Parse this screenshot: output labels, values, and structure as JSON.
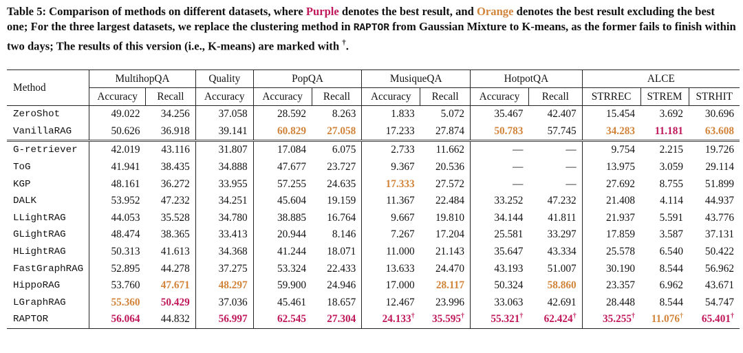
{
  "caption": {
    "label": "Table 5:",
    "part1": " Comparison of methods on different datasets, where ",
    "purple_word": "Purple",
    "part2": " denotes the best result, and ",
    "orange_word": "Orange",
    "part3": " denotes the best result excluding the best one; For the three largest datasets, we replace the clustering method in ",
    "raptor_word": "RAPTOR",
    "part4": " from Gaussian Mixture to K-means, as the former fails to finish within two days; The results of this version (i.e., K-means) are marked with ",
    "dagger": "†",
    "part5": "."
  },
  "colors": {
    "best": "#c0185a",
    "second": "#d2843a"
  },
  "header": {
    "method": "Method",
    "groups": [
      {
        "name": "MultihopQA",
        "span": 2
      },
      {
        "name": "Quality",
        "span": 1
      },
      {
        "name": "PopQA",
        "span": 2
      },
      {
        "name": "MusiqueQA",
        "span": 2
      },
      {
        "name": "HotpotQA",
        "span": 2
      },
      {
        "name": "ALCE",
        "span": 3
      }
    ],
    "subheaders": [
      "Accuracy",
      "Recall",
      "Accuracy",
      "Accuracy",
      "Recall",
      "Accuracy",
      "Recall",
      "Accuracy",
      "Recall",
      "STRREC",
      "STREM",
      "STRHIT"
    ]
  },
  "section1": [
    {
      "method": "ZeroShot",
      "cells": [
        {
          "v": "49.022"
        },
        {
          "v": "34.256"
        },
        {
          "v": "37.058"
        },
        {
          "v": "28.592"
        },
        {
          "v": "8.263"
        },
        {
          "v": "1.833"
        },
        {
          "v": "5.072"
        },
        {
          "v": "35.467"
        },
        {
          "v": "42.407"
        },
        {
          "v": "15.454"
        },
        {
          "v": "3.692"
        },
        {
          "v": "30.696"
        }
      ]
    },
    {
      "method": "VanillaRAG",
      "cells": [
        {
          "v": "50.626"
        },
        {
          "v": "36.918"
        },
        {
          "v": "39.141"
        },
        {
          "v": "60.829",
          "c": "second"
        },
        {
          "v": "27.058",
          "c": "second"
        },
        {
          "v": "17.233"
        },
        {
          "v": "27.874"
        },
        {
          "v": "50.783",
          "c": "second"
        },
        {
          "v": "57.745"
        },
        {
          "v": "34.283",
          "c": "second"
        },
        {
          "v": "11.181",
          "c": "best"
        },
        {
          "v": "63.608",
          "c": "second"
        }
      ]
    }
  ],
  "section2": [
    {
      "method": "G-retriever",
      "cells": [
        {
          "v": "42.019"
        },
        {
          "v": "43.116"
        },
        {
          "v": "31.807"
        },
        {
          "v": "17.084"
        },
        {
          "v": "6.075"
        },
        {
          "v": "2.733"
        },
        {
          "v": "11.662"
        },
        {
          "v": "—"
        },
        {
          "v": "—"
        },
        {
          "v": "9.754"
        },
        {
          "v": "2.215"
        },
        {
          "v": "19.726"
        }
      ]
    },
    {
      "method": "ToG",
      "cells": [
        {
          "v": "41.941"
        },
        {
          "v": "38.435"
        },
        {
          "v": "34.888"
        },
        {
          "v": "47.677"
        },
        {
          "v": "23.727"
        },
        {
          "v": "9.367"
        },
        {
          "v": "20.536"
        },
        {
          "v": "—"
        },
        {
          "v": "—"
        },
        {
          "v": "13.975"
        },
        {
          "v": "3.059"
        },
        {
          "v": "29.114"
        }
      ]
    },
    {
      "method": "KGP",
      "cells": [
        {
          "v": "48.161"
        },
        {
          "v": "36.272"
        },
        {
          "v": "33.955"
        },
        {
          "v": "57.255"
        },
        {
          "v": "24.635"
        },
        {
          "v": "17.333",
          "c": "second"
        },
        {
          "v": "27.572"
        },
        {
          "v": "—"
        },
        {
          "v": "—"
        },
        {
          "v": "27.692"
        },
        {
          "v": "8.755"
        },
        {
          "v": "51.899"
        }
      ]
    },
    {
      "method": "DALK",
      "cells": [
        {
          "v": "53.952"
        },
        {
          "v": "47.232"
        },
        {
          "v": "34.251"
        },
        {
          "v": "45.604"
        },
        {
          "v": "19.159"
        },
        {
          "v": "11.367"
        },
        {
          "v": "22.484"
        },
        {
          "v": "33.252"
        },
        {
          "v": "47.232"
        },
        {
          "v": "21.408"
        },
        {
          "v": "4.114"
        },
        {
          "v": "44.937"
        }
      ]
    },
    {
      "method": "LLightRAG",
      "cells": [
        {
          "v": "44.053"
        },
        {
          "v": "35.528"
        },
        {
          "v": "34.780"
        },
        {
          "v": "38.885"
        },
        {
          "v": "16.764"
        },
        {
          "v": "9.667"
        },
        {
          "v": "19.810"
        },
        {
          "v": "34.144"
        },
        {
          "v": "41.811"
        },
        {
          "v": "21.937"
        },
        {
          "v": "5.591"
        },
        {
          "v": "43.776"
        }
      ]
    },
    {
      "method": "GLightRAG",
      "cells": [
        {
          "v": "48.474"
        },
        {
          "v": "38.365"
        },
        {
          "v": "33.413"
        },
        {
          "v": "20.944"
        },
        {
          "v": "8.146"
        },
        {
          "v": "7.267"
        },
        {
          "v": "17.204"
        },
        {
          "v": "25.581"
        },
        {
          "v": "33.297"
        },
        {
          "v": "17.859"
        },
        {
          "v": "3.587"
        },
        {
          "v": "37.131"
        }
      ]
    },
    {
      "method": "HLightRAG",
      "cells": [
        {
          "v": "50.313"
        },
        {
          "v": "41.613"
        },
        {
          "v": "34.368"
        },
        {
          "v": "41.244"
        },
        {
          "v": "18.071"
        },
        {
          "v": "11.000"
        },
        {
          "v": "21.143"
        },
        {
          "v": "35.647"
        },
        {
          "v": "43.334"
        },
        {
          "v": "25.578"
        },
        {
          "v": "6.540"
        },
        {
          "v": "50.422"
        }
      ]
    },
    {
      "method": "FastGraphRAG",
      "cells": [
        {
          "v": "52.895"
        },
        {
          "v": "44.278"
        },
        {
          "v": "37.275"
        },
        {
          "v": "53.324"
        },
        {
          "v": "22.433"
        },
        {
          "v": "13.633"
        },
        {
          "v": "24.470"
        },
        {
          "v": "43.193"
        },
        {
          "v": "51.007"
        },
        {
          "v": "30.190"
        },
        {
          "v": "8.544"
        },
        {
          "v": "56.962"
        }
      ]
    },
    {
      "method": "HippoRAG",
      "cells": [
        {
          "v": "53.760"
        },
        {
          "v": "47.671",
          "c": "second"
        },
        {
          "v": "48.297",
          "c": "second"
        },
        {
          "v": "59.900"
        },
        {
          "v": "24.946"
        },
        {
          "v": "17.000"
        },
        {
          "v": "28.117",
          "c": "second"
        },
        {
          "v": "50.324"
        },
        {
          "v": "58.860",
          "c": "second"
        },
        {
          "v": "23.357"
        },
        {
          "v": "6.962"
        },
        {
          "v": "43.671"
        }
      ]
    },
    {
      "method": "LGraphRAG",
      "cells": [
        {
          "v": "55.360",
          "c": "second"
        },
        {
          "v": "50.429",
          "c": "best"
        },
        {
          "v": "37.036"
        },
        {
          "v": "45.461"
        },
        {
          "v": "18.657"
        },
        {
          "v": "12.467"
        },
        {
          "v": "23.996"
        },
        {
          "v": "33.063"
        },
        {
          "v": "42.691"
        },
        {
          "v": "28.448"
        },
        {
          "v": "8.544"
        },
        {
          "v": "54.747"
        }
      ]
    },
    {
      "method": "RAPTOR",
      "cells": [
        {
          "v": "56.064",
          "c": "best"
        },
        {
          "v": "44.832"
        },
        {
          "v": "56.997",
          "c": "best"
        },
        {
          "v": "62.545",
          "c": "best"
        },
        {
          "v": "27.304",
          "c": "best"
        },
        {
          "v": "24.133",
          "c": "best",
          "d": "†"
        },
        {
          "v": "35.595",
          "c": "best",
          "d": "†"
        },
        {
          "v": "55.321",
          "c": "best",
          "d": "†"
        },
        {
          "v": "62.424",
          "c": "best",
          "d": "†"
        },
        {
          "v": "35.255",
          "c": "best",
          "d": "†"
        },
        {
          "v": "11.076",
          "c": "second",
          "d": "†"
        },
        {
          "v": "65.401",
          "c": "best",
          "d": "†"
        }
      ]
    }
  ]
}
